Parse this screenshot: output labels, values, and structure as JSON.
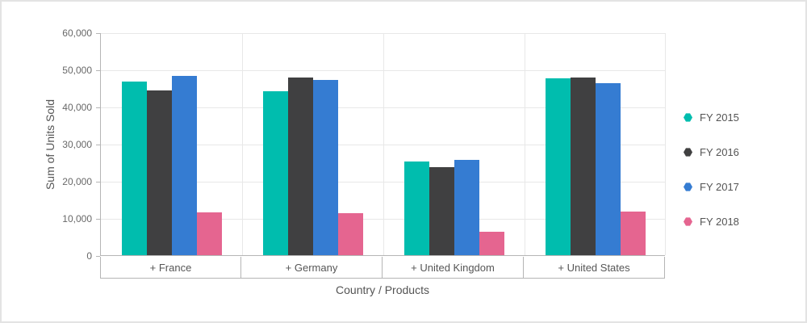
{
  "chart_data": {
    "type": "bar",
    "title": "",
    "xlabel": "Country / Products",
    "ylabel": "Sum of Units Sold",
    "categories": [
      "+ France",
      "+ Germany",
      "+ United Kingdom",
      "+ United States"
    ],
    "series": [
      {
        "name": "FY 2015",
        "color": "#00bdae",
        "values": [
          46800,
          44100,
          25300,
          47600
        ]
      },
      {
        "name": "FY 2016",
        "color": "#404041",
        "values": [
          44400,
          47900,
          23800,
          47800
        ]
      },
      {
        "name": "FY 2017",
        "color": "#357cd2",
        "values": [
          48200,
          47200,
          25700,
          46400
        ]
      },
      {
        "name": "FY 2018",
        "color": "#e56590",
        "values": [
          11500,
          11300,
          6300,
          11700
        ]
      }
    ],
    "y_axis": {
      "min": 0,
      "max": 60000,
      "tick_interval": 10000,
      "tick_labels": [
        "0",
        "10,000",
        "20,000",
        "30,000",
        "40,000",
        "50,000",
        "60,000"
      ]
    },
    "legend": {
      "position": "right",
      "items": [
        "FY 2015",
        "FY 2016",
        "FY 2017",
        "FY 2018"
      ]
    },
    "grid": true,
    "colors": {
      "axis_line": "#b5b5b5",
      "gridline": "#e8e8e8",
      "tick_text": "#686868",
      "label_text": "#565656",
      "title_text": "#545454"
    }
  }
}
